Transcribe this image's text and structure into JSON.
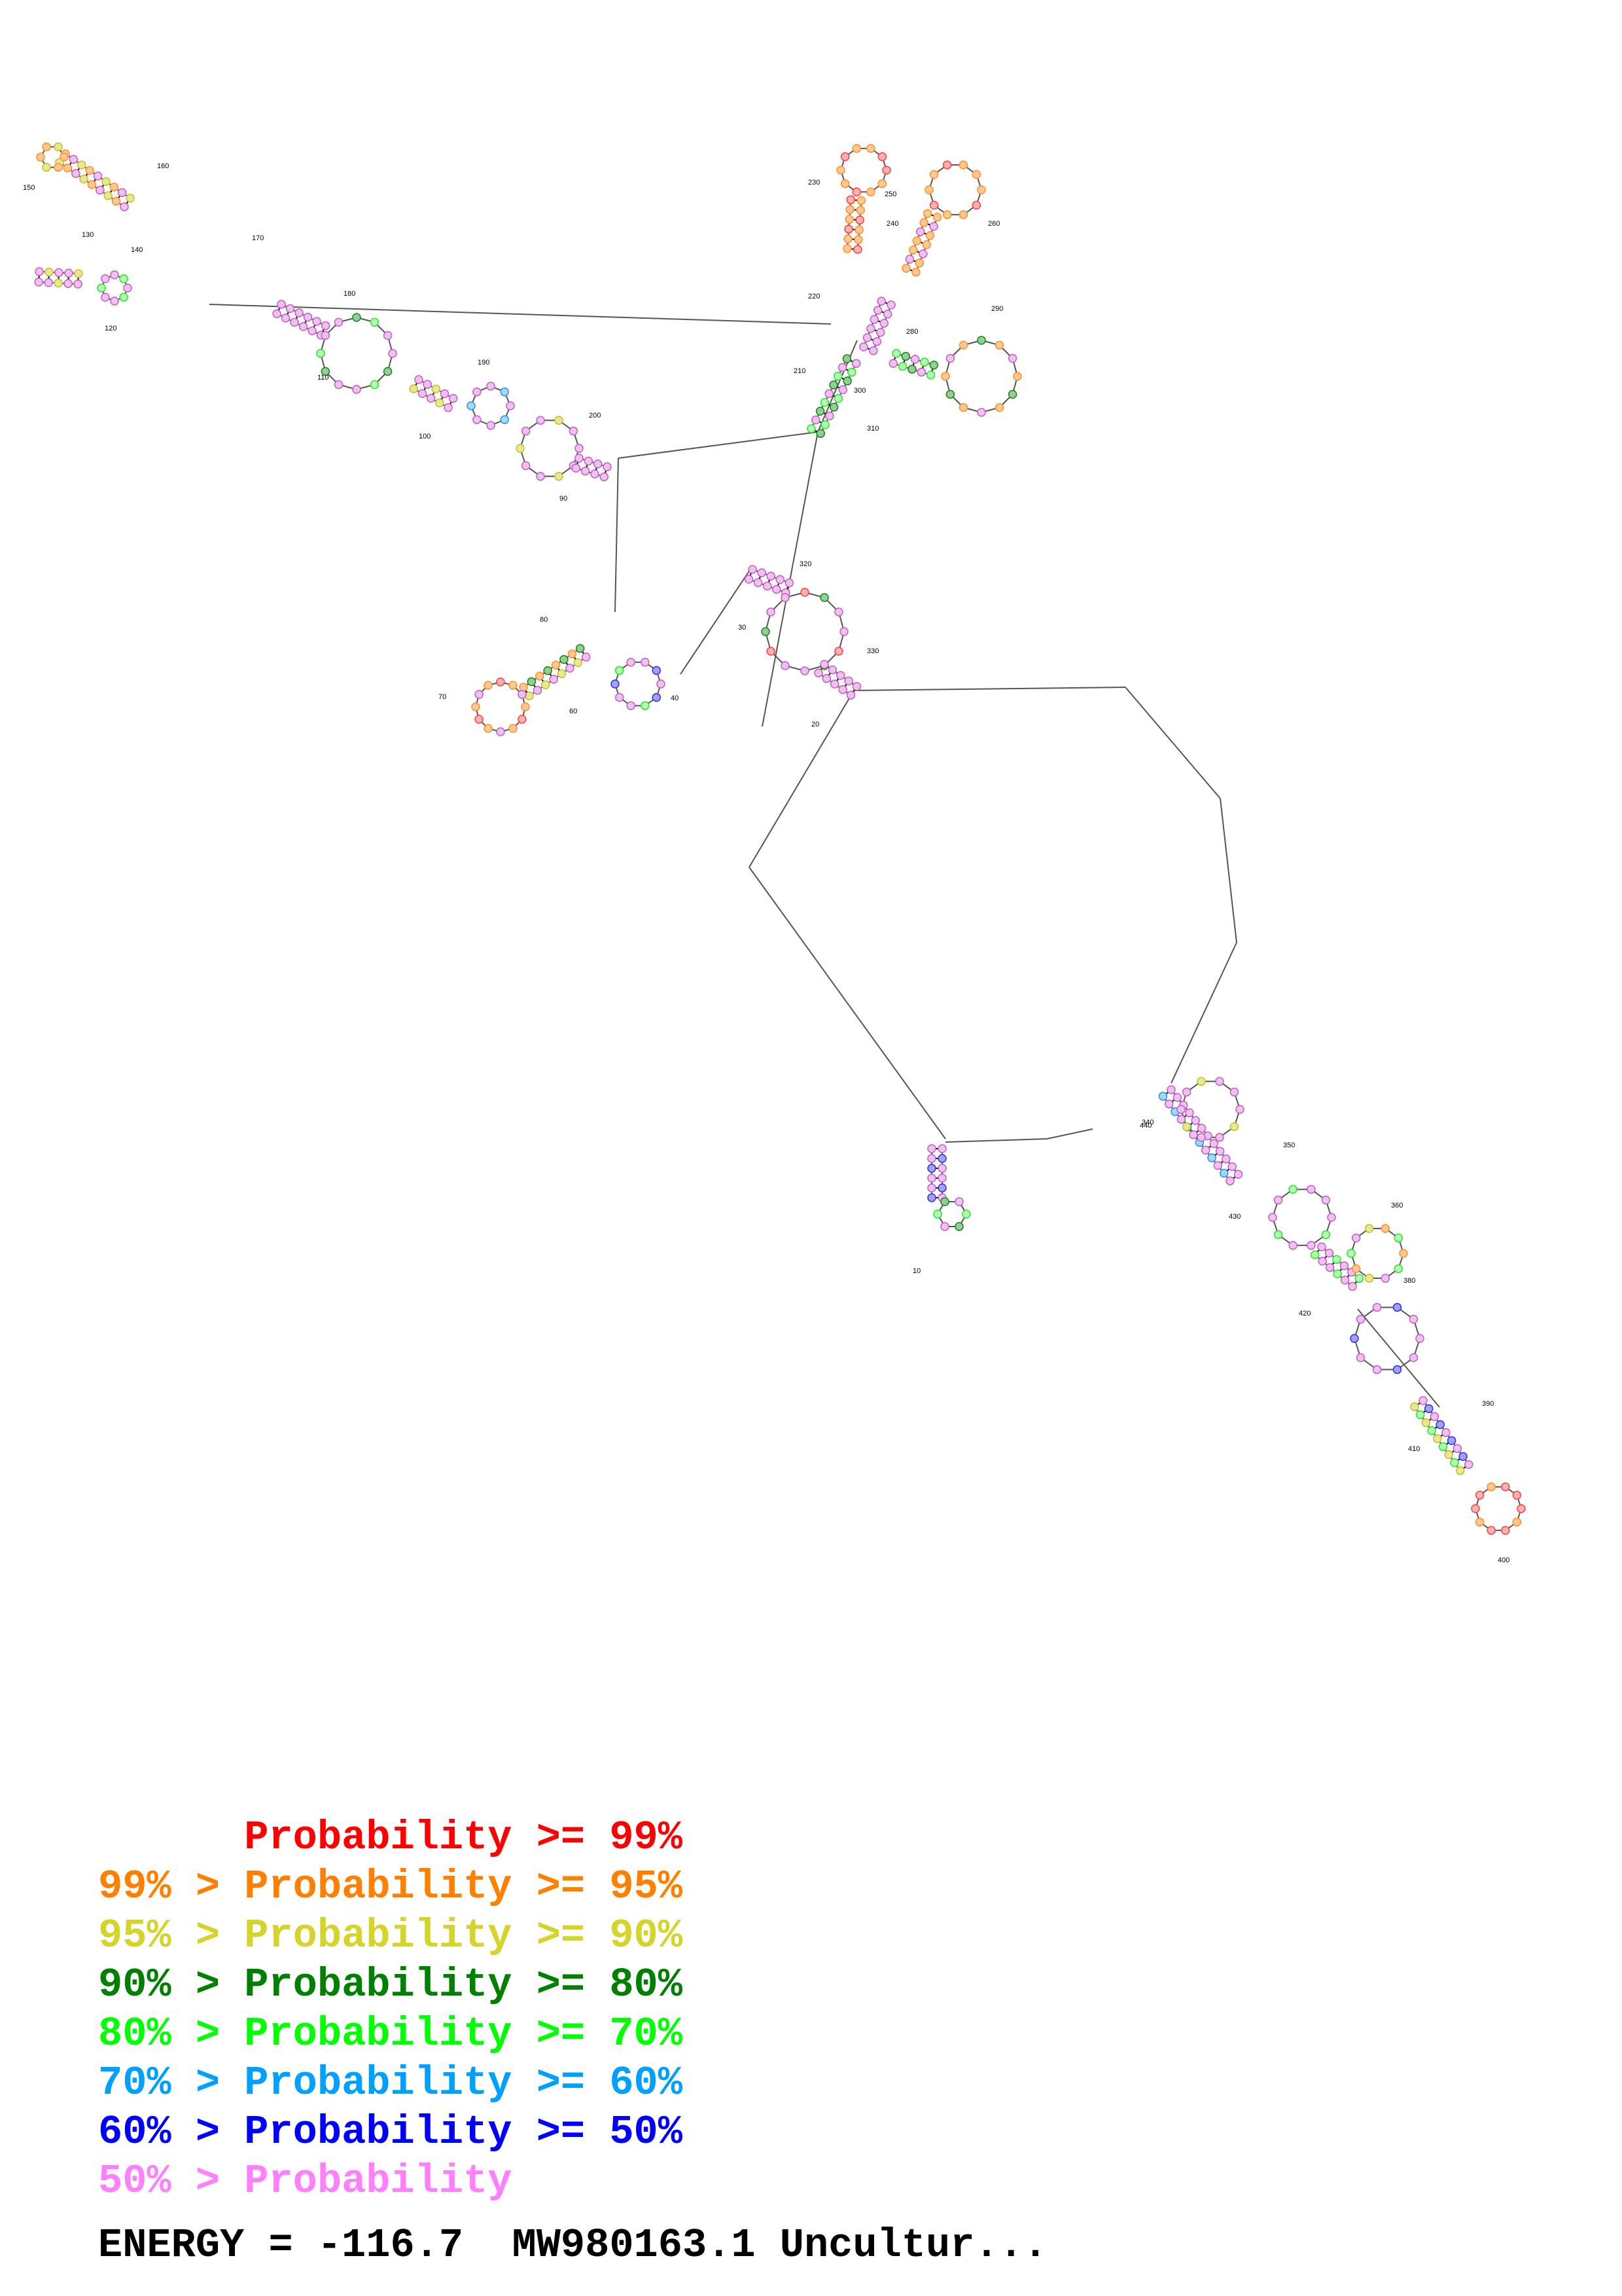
{
  "legend": {
    "rows": [
      {
        "prefix": "",
        "text": "Probability >= 99%",
        "color": "#ff0000"
      },
      {
        "prefix": "99% > ",
        "text": "Probability >= 95%",
        "color": "#ff8000"
      },
      {
        "prefix": "95% > ",
        "text": "Probability >= 90%",
        "color": "#d4d42a"
      },
      {
        "prefix": "90% > ",
        "text": "Probability >= 80%",
        "color": "#008000"
      },
      {
        "prefix": "80% > ",
        "text": "Probability >= 70%",
        "color": "#00ff00"
      },
      {
        "prefix": "70% > ",
        "text": "Probability >= 60%",
        "color": "#00a0ff"
      },
      {
        "prefix": "60% > ",
        "text": "Probability >= 50%",
        "color": "#0000ff"
      },
      {
        "prefix": "50% > ",
        "text": "Probability",
        "color": "#ff80ff"
      }
    ]
  },
  "energy": {
    "text": "ENERGY = -116.7  MW980163.1 Uncultur..."
  },
  "diagram": {
    "position_labels": [
      "10",
      "20",
      "30",
      "40",
      "60",
      "70",
      "80",
      "90",
      "100",
      "110",
      "120",
      "130",
      "140",
      "150",
      "160",
      "170",
      "180",
      "190",
      "200",
      "210",
      "220",
      "230",
      "240",
      "250",
      "260",
      "280",
      "290",
      "300",
      "310",
      "320",
      "330",
      "340",
      "350",
      "360",
      "380",
      "390",
      "400",
      "410",
      "420",
      "430",
      "440"
    ]
  }
}
